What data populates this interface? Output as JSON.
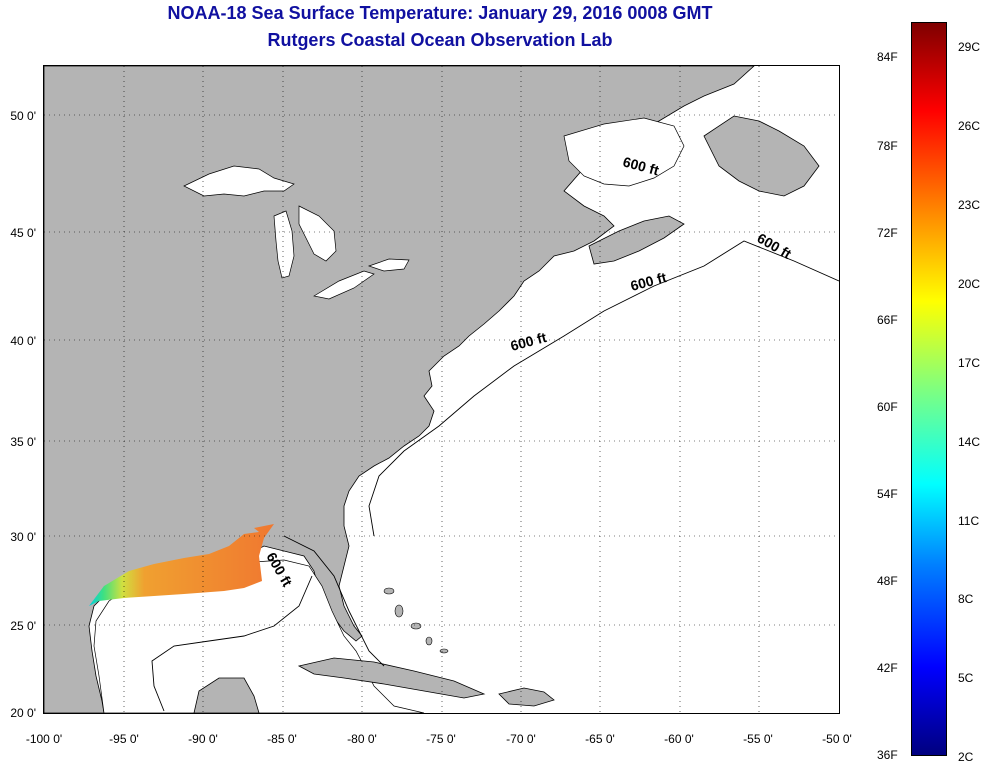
{
  "title": {
    "line1": "NOAA-18 Sea Surface Temperature:  January 29, 2016 0008 GMT",
    "line2": "Rutgers Coastal Ocean Observation Lab"
  },
  "map": {
    "lon_range": [
      -100,
      -50
    ],
    "lat_range": [
      20,
      52
    ],
    "grid": true,
    "land_color": "#b4b4b4",
    "water_color": "#ffffff",
    "contour_label": "600 ft",
    "y_ticks": [
      "20 0'",
      "25 0'",
      "30 0'",
      "35 0'",
      "40 0'",
      "45 0'",
      "50 0'"
    ],
    "x_ticks": [
      "-100 0'",
      "-95 0'",
      "-90 0'",
      "-85 0'",
      "-80 0'",
      "-75 0'",
      "-70 0'",
      "-65 0'",
      "-60 0'",
      "-55 0'",
      "-50 0'"
    ]
  },
  "colorbar": {
    "fahrenheit": [
      "36F",
      "42F",
      "48F",
      "54F",
      "60F",
      "66F",
      "72F",
      "78F",
      "84F"
    ],
    "celsius": [
      "2C",
      "5C",
      "8C",
      "11C",
      "14C",
      "17C",
      "20C",
      "23C",
      "26C",
      "29C"
    ],
    "colors": [
      "#00007f",
      "#0000ff",
      "#0080ff",
      "#00ffff",
      "#7fff7f",
      "#ffff00",
      "#ff8000",
      "#ff0000",
      "#7f0000"
    ]
  }
}
